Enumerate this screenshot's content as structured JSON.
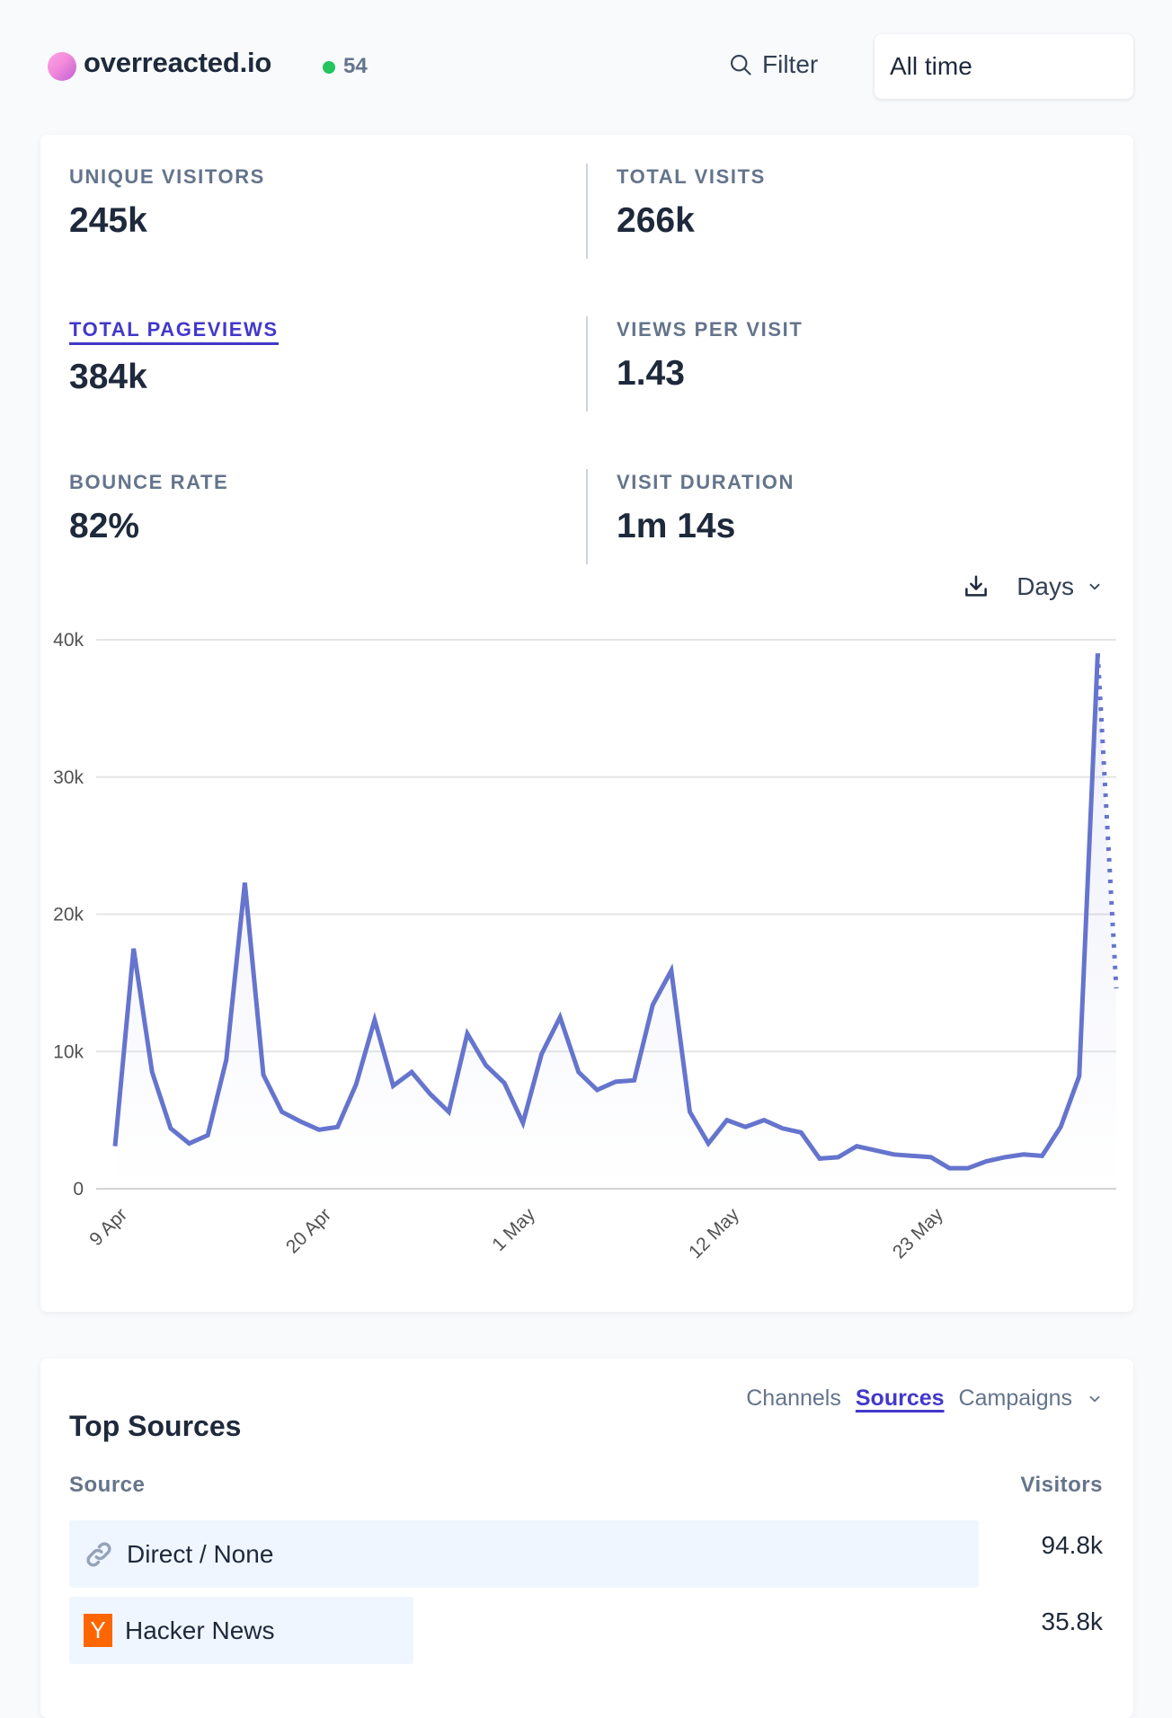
{
  "header": {
    "site_name": "overreacted.io",
    "live_visitors": "54",
    "filter_label": "Filter",
    "time_range": "All time",
    "colors": {
      "live_dot": "#22c55e",
      "accent": "#4338ca"
    }
  },
  "stats": [
    {
      "label": "UNIQUE VISITORS",
      "value": "245k",
      "active": false
    },
    {
      "label": "TOTAL VISITS",
      "value": "266k",
      "active": false
    },
    {
      "label": "TOTAL PAGEVIEWS",
      "value": "384k",
      "active": true
    },
    {
      "label": "VIEWS PER VISIT",
      "value": "1.43",
      "active": false
    },
    {
      "label": "BOUNCE RATE",
      "value": "82%",
      "active": false
    },
    {
      "label": "VISIT DURATION",
      "value": "1m 14s",
      "active": false
    }
  ],
  "chart_controls": {
    "download_icon": "download-icon",
    "interval": "Days"
  },
  "chart_data": {
    "type": "line",
    "title": "",
    "xlabel": "",
    "ylabel": "",
    "metric": "TOTAL PAGEVIEWS",
    "ylim": [
      0,
      40000
    ],
    "y_ticks": [
      0,
      10000,
      20000,
      30000,
      40000
    ],
    "y_tick_labels": [
      "0",
      "10k",
      "20k",
      "30k",
      "40k"
    ],
    "x_tick_labels": [
      "9 Apr",
      "20 Apr",
      "1 May",
      "12 May",
      "23 May"
    ],
    "x_tick_indices": [
      1,
      12,
      23,
      34,
      45
    ],
    "grid": true,
    "line_color": "#6574cd",
    "incomplete_last_point": true,
    "series": [
      {
        "name": "Pageviews",
        "dates_start": "8 Apr",
        "dates_end": "1 Jun",
        "values": [
          3100,
          17500,
          8500,
          4400,
          3300,
          3900,
          9400,
          22300,
          8300,
          5600,
          4900,
          4300,
          4500,
          7600,
          12300,
          7500,
          8500,
          6900,
          5600,
          11300,
          9000,
          7700,
          4800,
          9800,
          12500,
          8500,
          7200,
          7800,
          7900,
          13400,
          15900,
          5600,
          3300,
          5000,
          4500,
          5000,
          4400,
          4100,
          2200,
          2300,
          3100,
          2800,
          2500,
          2400,
          2300,
          1500,
          1500,
          2000,
          2300,
          2500,
          2400,
          4500,
          8200,
          39000,
          14600
        ]
      }
    ]
  },
  "sources": {
    "title": "Top Sources",
    "tabs": [
      {
        "label": "Channels",
        "active": false
      },
      {
        "label": "Sources",
        "active": true
      },
      {
        "label": "Campaigns",
        "active": false
      }
    ],
    "col_source": "Source",
    "col_visitors": "Visitors",
    "rows": [
      {
        "label": "Direct / None",
        "icon": "link-icon",
        "value": "94.8k",
        "visitors": 94800
      },
      {
        "label": "Hacker News",
        "icon": "hacker-news-icon",
        "value": "35.8k",
        "visitors": 35800
      }
    ]
  }
}
